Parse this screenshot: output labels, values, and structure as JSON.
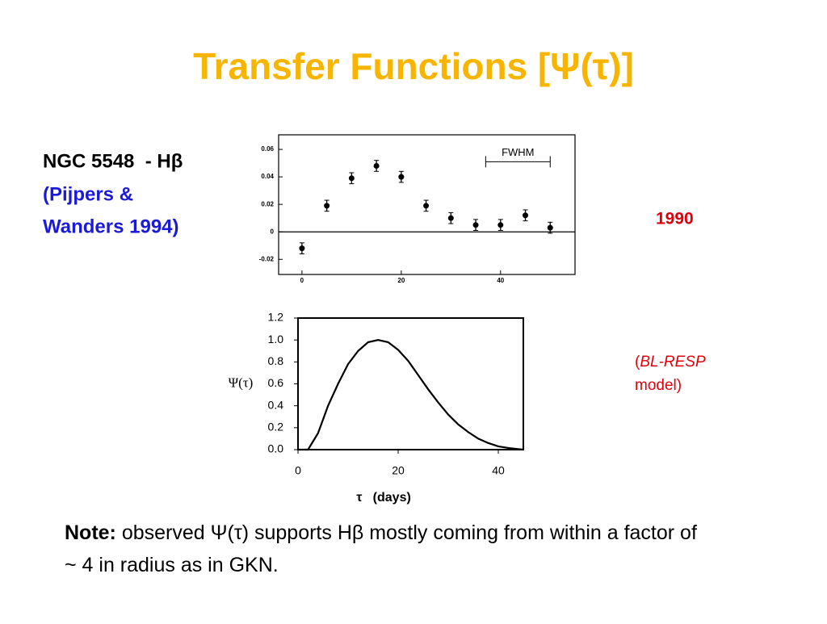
{
  "title": "Transfer Functions [Ψ(τ)]",
  "source": {
    "object": "NGC 5548  - Hβ",
    "reference": [
      "(Pijpers &",
      "Wanders 1994)"
    ]
  },
  "year": "1990",
  "model_label": [
    "(",
    "BL-RESP",
    "model)"
  ],
  "note": {
    "lead": "Note:",
    "text": "observed Ψ(τ) supports Hβ mostly coming from within a factor of ~ 4 in radius as in GKN."
  },
  "chart_data": [
    {
      "type": "scatter",
      "color": "#000000",
      "x": [
        0,
        5,
        10,
        15,
        20,
        25,
        30,
        35,
        40,
        45,
        50
      ],
      "values": [
        -0.012,
        0.019,
        0.039,
        0.048,
        0.04,
        0.019,
        0.01,
        0.005,
        0.005,
        0.012,
        0.003
      ],
      "errors": [
        0.004,
        0.004,
        0.004,
        0.004,
        0.004,
        0.004,
        0.004,
        0.004,
        0.004,
        0.004,
        0.004
      ],
      "xlim": [
        -4.7,
        55
      ],
      "ylim": [
        -0.031,
        0.0706
      ],
      "xticks": [
        0,
        20,
        40
      ],
      "yticks": [
        -0.02,
        0,
        0.02,
        0.04,
        0.06
      ],
      "zero_line": true,
      "annotations": [
        {
          "text": "FWHM",
          "x": [
            37,
            50
          ],
          "y": 0.051
        }
      ]
    },
    {
      "type": "line",
      "color": "#000000",
      "x": [
        0,
        2,
        4,
        6,
        8,
        10,
        12,
        14,
        16,
        18,
        20,
        22,
        24,
        26,
        28,
        30,
        32,
        34,
        36,
        38,
        40,
        42,
        44,
        45
      ],
      "values": [
        0,
        0,
        0.15,
        0.4,
        0.6,
        0.78,
        0.9,
        0.98,
        1.0,
        0.98,
        0.91,
        0.81,
        0.68,
        0.55,
        0.43,
        0.32,
        0.23,
        0.16,
        0.1,
        0.06,
        0.03,
        0.015,
        0.005,
        0
      ],
      "xlim": [
        0,
        45
      ],
      "ylim": [
        0,
        1.2
      ],
      "xticks": [
        0,
        20,
        40
      ],
      "yticks": [
        {
          "value": 0,
          "label": "0.0"
        },
        0.2,
        0.4,
        0.6,
        0.8,
        {
          "value": 1,
          "label": "1.0"
        },
        1.2
      ],
      "ylabel": "Ψ(τ)",
      "xlabel": "τ   (days)"
    }
  ]
}
